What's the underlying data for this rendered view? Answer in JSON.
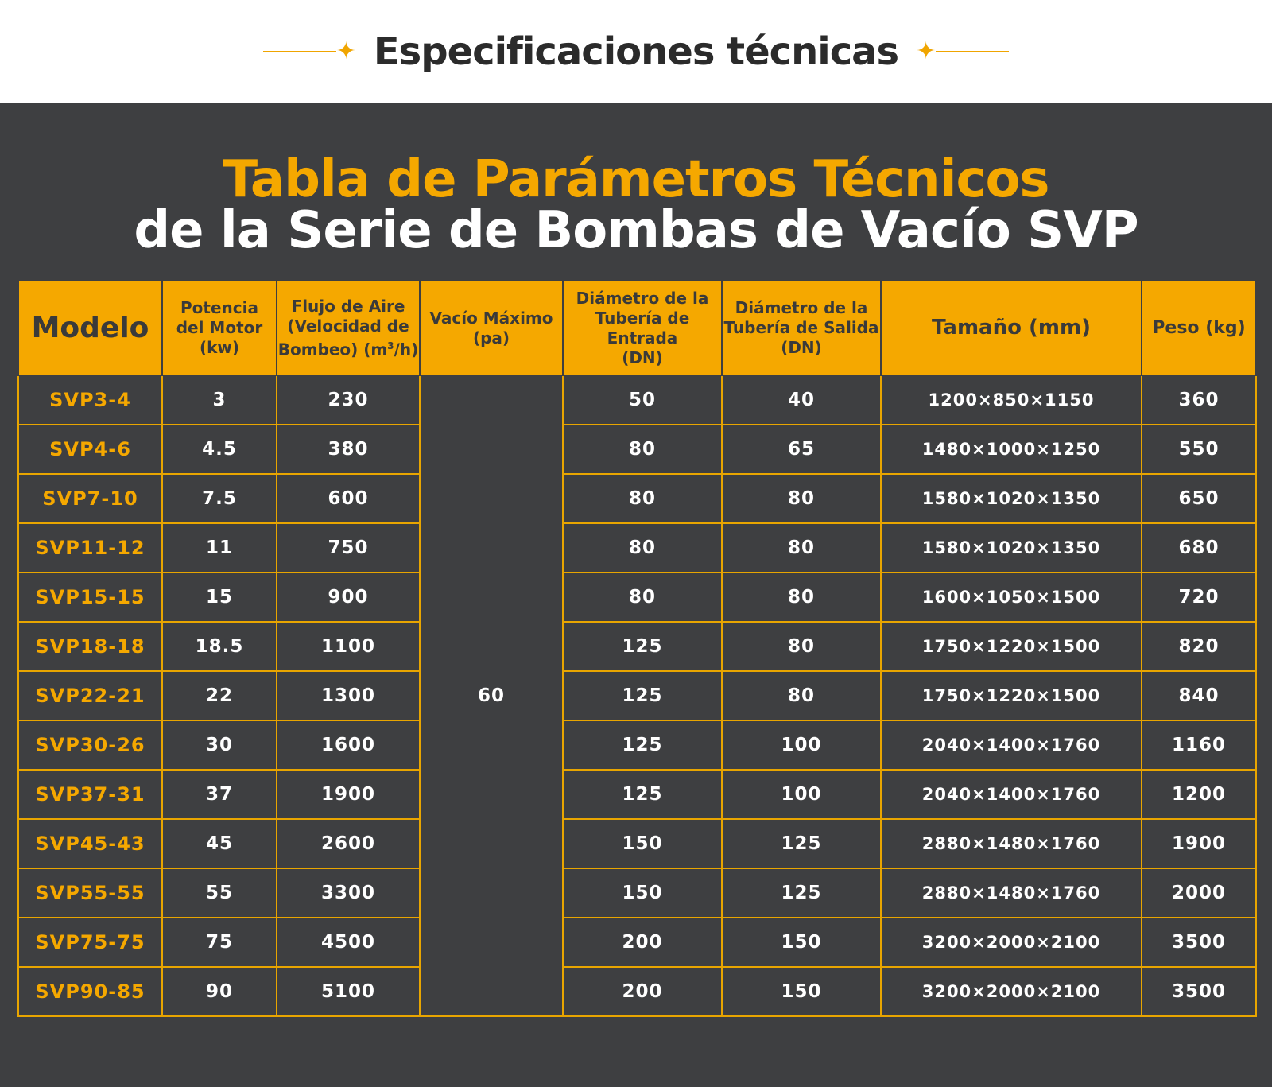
{
  "header": {
    "title": "Especificaciones técnicas",
    "accent_color": "#f0a500"
  },
  "heading": {
    "line1": "Tabla de Parámetros Técnicos",
    "line2": "de la Serie de Bombas de Vacío SVP"
  },
  "table": {
    "columns": {
      "model": "Modelo",
      "power": [
        "Potencia",
        "del Motor",
        "(kw)"
      ],
      "flow": [
        "Flujo de Aire",
        "(Velocidad de",
        "Bombeo) (m",
        "3",
        "/h)"
      ],
      "vacuum": [
        "Vacío Máximo",
        "(pa)"
      ],
      "inlet": [
        "Diámetro de la",
        "Tubería de Entrada",
        "(DN)"
      ],
      "outlet": [
        "Diámetro de la",
        "Tubería de Salida",
        "(DN)"
      ],
      "size": "Tamaño (mm)",
      "weight": "Peso (kg)"
    },
    "vacuum_value": "60",
    "rows": [
      {
        "model": "SVP3-4",
        "power": "3",
        "flow": "230",
        "inlet": "50",
        "outlet": "40",
        "size": "1200×850×1150",
        "weight": "360"
      },
      {
        "model": "SVP4-6",
        "power": "4.5",
        "flow": "380",
        "inlet": "80",
        "outlet": "65",
        "size": "1480×1000×1250",
        "weight": "550"
      },
      {
        "model": "SVP7-10",
        "power": "7.5",
        "flow": "600",
        "inlet": "80",
        "outlet": "80",
        "size": "1580×1020×1350",
        "weight": "650"
      },
      {
        "model": "SVP11-12",
        "power": "11",
        "flow": "750",
        "inlet": "80",
        "outlet": "80",
        "size": "1580×1020×1350",
        "weight": "680"
      },
      {
        "model": "SVP15-15",
        "power": "15",
        "flow": "900",
        "inlet": "80",
        "outlet": "80",
        "size": "1600×1050×1500",
        "weight": "720"
      },
      {
        "model": "SVP18-18",
        "power": "18.5",
        "flow": "1100",
        "inlet": "125",
        "outlet": "80",
        "size": "1750×1220×1500",
        "weight": "820"
      },
      {
        "model": "SVP22-21",
        "power": "22",
        "flow": "1300",
        "inlet": "125",
        "outlet": "80",
        "size": "1750×1220×1500",
        "weight": "840"
      },
      {
        "model": "SVP30-26",
        "power": "30",
        "flow": "1600",
        "inlet": "125",
        "outlet": "100",
        "size": "2040×1400×1760",
        "weight": "1160"
      },
      {
        "model": "SVP37-31",
        "power": "37",
        "flow": "1900",
        "inlet": "125",
        "outlet": "100",
        "size": "2040×1400×1760",
        "weight": "1200"
      },
      {
        "model": "SVP45-43",
        "power": "45",
        "flow": "2600",
        "inlet": "150",
        "outlet": "125",
        "size": "2880×1480×1760",
        "weight": "1900"
      },
      {
        "model": "SVP55-55",
        "power": "55",
        "flow": "3300",
        "inlet": "150",
        "outlet": "125",
        "size": "2880×1480×1760",
        "weight": "2000"
      },
      {
        "model": "SVP75-75",
        "power": "75",
        "flow": "4500",
        "inlet": "200",
        "outlet": "150",
        "size": "3200×2000×2100",
        "weight": "3500"
      },
      {
        "model": "SVP90-85",
        "power": "90",
        "flow": "5100",
        "inlet": "200",
        "outlet": "150",
        "size": "3200×2000×2100",
        "weight": "3500"
      }
    ]
  }
}
